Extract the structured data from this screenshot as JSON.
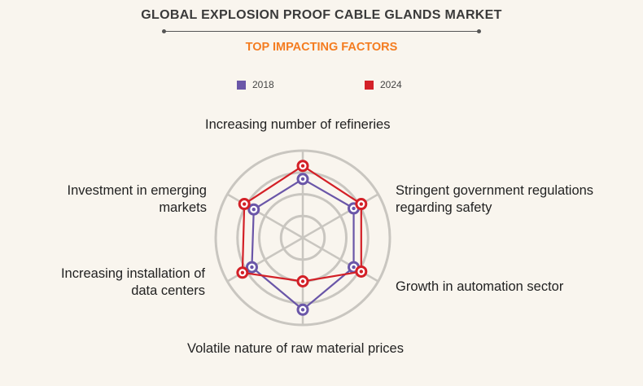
{
  "header": {
    "title": "GLOBAL EXPLOSION PROOF CABLE GLANDS MARKET",
    "subtitle": "TOP IMPACTING FACTORS"
  },
  "colors": {
    "series_2018": "#6a56a8",
    "series_2024": "#d32027",
    "grid": "#c9c6c0",
    "title_accent": "#f47c20"
  },
  "chart_data": {
    "type": "radar",
    "title": "TOP IMPACTING FACTORS",
    "axes": [
      "Increasing number of refineries",
      "Stringent government regulations regarding safety",
      "Growth in automation sector",
      "Volatile nature of raw material prices",
      "Increasing installation of data centers",
      "Investment in emerging markets"
    ],
    "axis_labels_display": [
      [
        "Increasing number of refineries"
      ],
      [
        "Stringent government regulations",
        "regarding safety"
      ],
      [
        "Growth in automation sector"
      ],
      [
        "Volatile nature of raw material prices"
      ],
      [
        "Increasing installation of",
        "data centers"
      ],
      [
        "Investment in emerging",
        "markets"
      ]
    ],
    "rings": 4,
    "range": [
      0,
      4
    ],
    "series": [
      {
        "name": "2018",
        "values": [
          2.7,
          2.7,
          2.7,
          3.3,
          2.7,
          2.6
        ]
      },
      {
        "name": "2024",
        "values": [
          3.3,
          3.1,
          3.1,
          2.0,
          3.2,
          3.1
        ]
      }
    ],
    "legend_position": "top-center",
    "grid": true
  }
}
